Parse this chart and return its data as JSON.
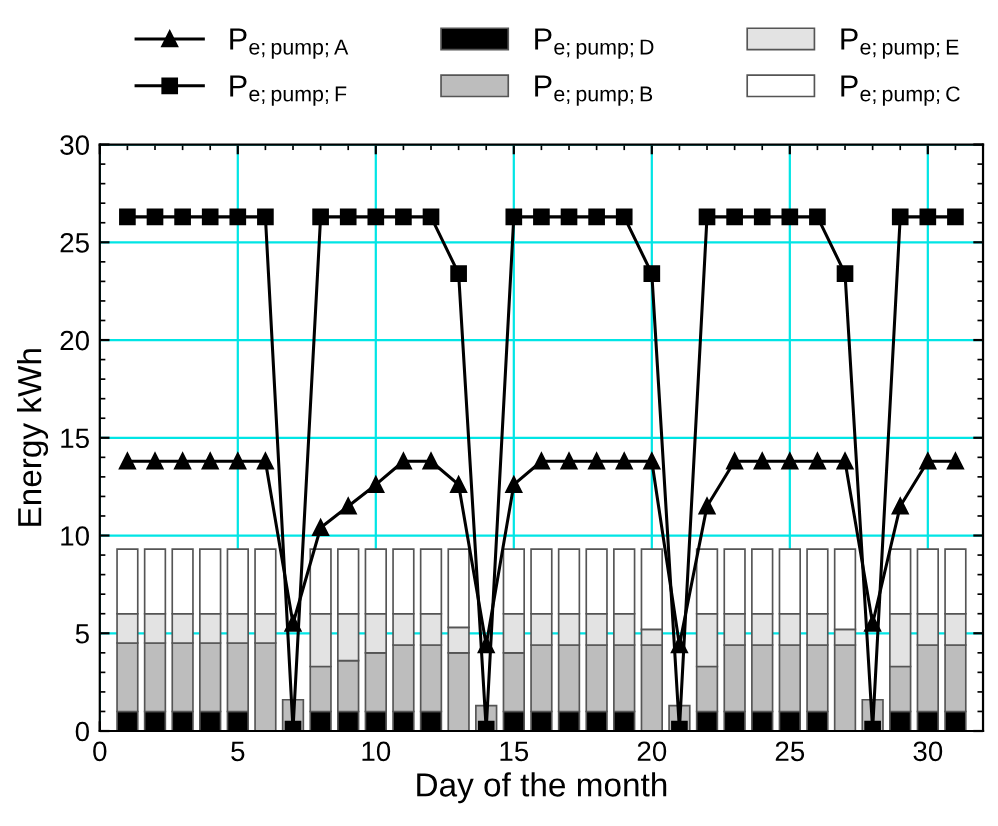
{
  "chart_data": {
    "type": "bar",
    "stacked": true,
    "xlabel": "Day of the month",
    "ylabel": "Energy kWh",
    "x": [
      1,
      2,
      3,
      4,
      5,
      6,
      7,
      8,
      9,
      10,
      11,
      12,
      13,
      14,
      15,
      16,
      17,
      18,
      19,
      20,
      21,
      22,
      23,
      24,
      25,
      26,
      27,
      28,
      29,
      30,
      31
    ],
    "xlim": [
      0,
      32
    ],
    "xticks": [
      0,
      5,
      10,
      15,
      20,
      25,
      30
    ],
    "ylim": [
      0,
      30
    ],
    "yticks": [
      0,
      5,
      10,
      15,
      20,
      25,
      30
    ],
    "grid": true,
    "legend": "top",
    "series": [
      {
        "name": "P$_{e;pump;A}$",
        "type": "line",
        "marker": "triangle",
        "color": "#000000",
        "values": [
          13.8,
          13.8,
          13.8,
          13.8,
          13.8,
          13.8,
          5.5,
          10.4,
          11.5,
          12.6,
          13.8,
          13.8,
          12.6,
          4.4,
          12.6,
          13.8,
          13.8,
          13.8,
          13.8,
          13.8,
          4.4,
          11.5,
          13.8,
          13.8,
          13.8,
          13.8,
          13.8,
          5.5,
          11.5,
          13.8,
          13.8
        ]
      },
      {
        "name": "P$_{e;pump;F}$",
        "type": "line",
        "marker": "square",
        "color": "#000000",
        "values": [
          26.3,
          26.3,
          26.3,
          26.3,
          26.3,
          26.3,
          0.1,
          26.3,
          26.3,
          26.3,
          26.3,
          26.3,
          23.4,
          0.1,
          26.3,
          26.3,
          26.3,
          26.3,
          26.3,
          23.4,
          0.1,
          26.3,
          26.3,
          26.3,
          26.3,
          26.3,
          23.4,
          0.1,
          26.3,
          26.3,
          26.3
        ]
      },
      {
        "name": "P$_{e;pump;D}$",
        "color": "#000000",
        "values": [
          1,
          1,
          1,
          1,
          1,
          0,
          null,
          1,
          1,
          1,
          1,
          1,
          0,
          null,
          1,
          1,
          1,
          1,
          1,
          0,
          null,
          1,
          1,
          1,
          1,
          1,
          0,
          null,
          1,
          1,
          1
        ]
      },
      {
        "name": "P$_{e;pump;B}$",
        "color": "#bdbdbd",
        "values": [
          3.5,
          3.5,
          3.5,
          3.5,
          3.5,
          4.5,
          1.6,
          2.3,
          2.6,
          3.0,
          3.4,
          3.4,
          4.0,
          1.3,
          3.0,
          3.4,
          3.4,
          3.4,
          3.4,
          4.4,
          1.3,
          2.3,
          3.4,
          3.4,
          3.4,
          3.4,
          4.4,
          1.6,
          2.3,
          3.4,
          3.4
        ]
      },
      {
        "name": "P$_{e;pump;E}$",
        "color": "#e3e3e3",
        "values": [
          1.5,
          1.5,
          1.5,
          1.5,
          1.5,
          1.5,
          null,
          2.7,
          2.4,
          2.0,
          1.6,
          1.6,
          1.3,
          null,
          2.0,
          1.6,
          1.6,
          1.6,
          1.6,
          0.8,
          null,
          2.7,
          1.6,
          1.6,
          1.6,
          1.6,
          0.8,
          null,
          2.7,
          1.6,
          1.6
        ]
      },
      {
        "name": "P$_{e;pump;C}$",
        "color": "#ffffff",
        "values": [
          3.3,
          3.3,
          3.3,
          3.3,
          3.3,
          3.3,
          null,
          3.3,
          3.3,
          3.3,
          3.3,
          3.3,
          4.0,
          null,
          3.3,
          3.3,
          3.3,
          3.3,
          3.3,
          4.1,
          null,
          3.3,
          3.3,
          3.3,
          3.3,
          3.3,
          4.1,
          null,
          3.3,
          3.3,
          3.3
        ]
      }
    ]
  }
}
